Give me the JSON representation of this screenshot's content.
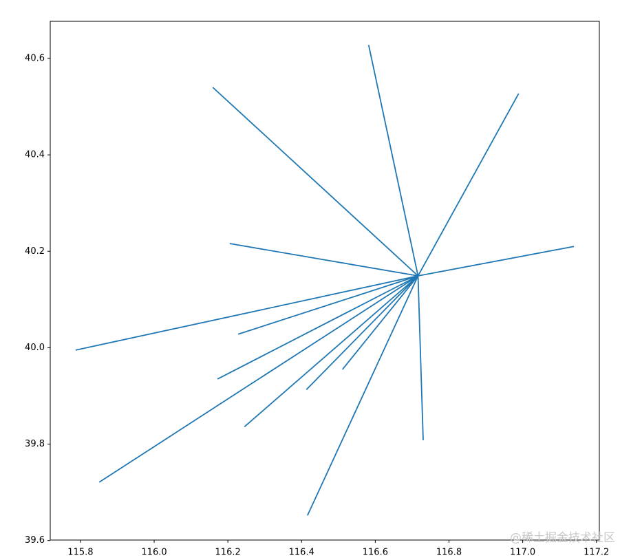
{
  "chart_data": {
    "type": "line",
    "xlim": [
      115.718,
      117.208
    ],
    "ylim": [
      39.601,
      40.677
    ],
    "xticks": [
      115.8,
      {
        "value": 116.0,
        "label": "116.0"
      },
      116.2,
      116.4,
      116.6,
      116.8,
      {
        "value": 117.0,
        "label": "117.0"
      },
      117.2
    ],
    "yticks": [
      39.6,
      39.8,
      {
        "value": 40.0,
        "label": "40.0"
      },
      40.2,
      40.4,
      40.6
    ],
    "watermark": "@稀土掘金技术社区",
    "series": [
      {
        "color": "#1f77b4",
        "x": [
          116.716,
          116.582
        ],
        "values": [
          40.149,
          40.628
        ]
      },
      {
        "color": "#1f77b4",
        "x": [
          116.716,
          116.159
        ],
        "values": [
          40.149,
          40.54
        ]
      },
      {
        "color": "#1f77b4",
        "x": [
          116.716,
          116.989
        ],
        "values": [
          40.149,
          40.527
        ]
      },
      {
        "color": "#1f77b4",
        "x": [
          116.716,
          116.205
        ],
        "values": [
          40.149,
          40.216
        ]
      },
      {
        "color": "#1f77b4",
        "x": [
          116.716,
          117.139
        ],
        "values": [
          40.149,
          40.21
        ]
      },
      {
        "color": "#1f77b4",
        "x": [
          116.716,
          115.787
        ],
        "values": [
          40.149,
          39.995
        ]
      },
      {
        "color": "#1f77b4",
        "x": [
          116.716,
          116.228
        ],
        "values": [
          40.149,
          40.028
        ]
      },
      {
        "color": "#1f77b4",
        "x": [
          116.716,
          116.172
        ],
        "values": [
          40.149,
          39.935
        ]
      },
      {
        "color": "#1f77b4",
        "x": [
          116.716,
          116.511
        ],
        "values": [
          40.149,
          39.955
        ]
      },
      {
        "color": "#1f77b4",
        "x": [
          116.716,
          116.413
        ],
        "values": [
          40.149,
          39.913
        ]
      },
      {
        "color": "#1f77b4",
        "x": [
          116.716,
          116.245
        ],
        "values": [
          40.149,
          39.836
        ]
      },
      {
        "color": "#1f77b4",
        "x": [
          116.716,
          115.851
        ],
        "values": [
          40.149,
          39.721
        ]
      },
      {
        "color": "#1f77b4",
        "x": [
          116.716,
          116.416
        ],
        "values": [
          40.149,
          39.652
        ]
      },
      {
        "color": "#1f77b4",
        "x": [
          116.716,
          116.73
        ],
        "values": [
          40.149,
          39.808
        ]
      }
    ]
  }
}
